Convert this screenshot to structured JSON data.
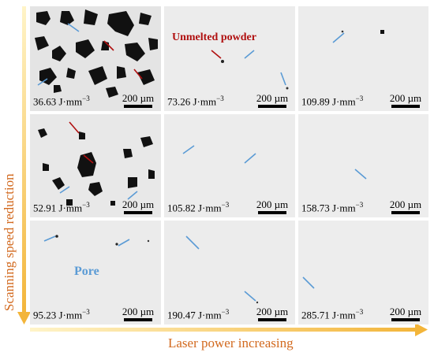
{
  "axes": {
    "y_label": "Scanning speed reduction",
    "x_label": "Laser power increasing",
    "arrow_color": "#f5c342",
    "label_color": "#d2691e"
  },
  "legend": {
    "unmelted": "Unmelted powder",
    "pore": "Pore",
    "unmelted_color": "#b01010",
    "pore_color": "#5b9bd5"
  },
  "panels": [
    {
      "energy": "36.63 J·mm",
      "scale": "200 µm",
      "porosity": "very-high"
    },
    {
      "energy": "73.26 J·mm",
      "scale": "200 µm",
      "porosity": "low"
    },
    {
      "energy": "109.89 J·mm",
      "scale": "200 µm",
      "porosity": "very-low"
    },
    {
      "energy": "52.91 J·mm",
      "scale": "200 µm",
      "porosity": "high"
    },
    {
      "energy": "105.82 J·mm",
      "scale": "200 µm",
      "porosity": "very-low"
    },
    {
      "energy": "158.73 J·mm",
      "scale": "200 µm",
      "porosity": "very-low"
    },
    {
      "energy": "95.23 J·mm",
      "scale": "200 µm",
      "porosity": "low"
    },
    {
      "energy": "190.47 J·mm",
      "scale": "200 µm",
      "porosity": "very-low"
    },
    {
      "energy": "285.71 J·mm",
      "scale": "200 µm",
      "porosity": "very-low"
    }
  ],
  "unit_exponent": "−3"
}
